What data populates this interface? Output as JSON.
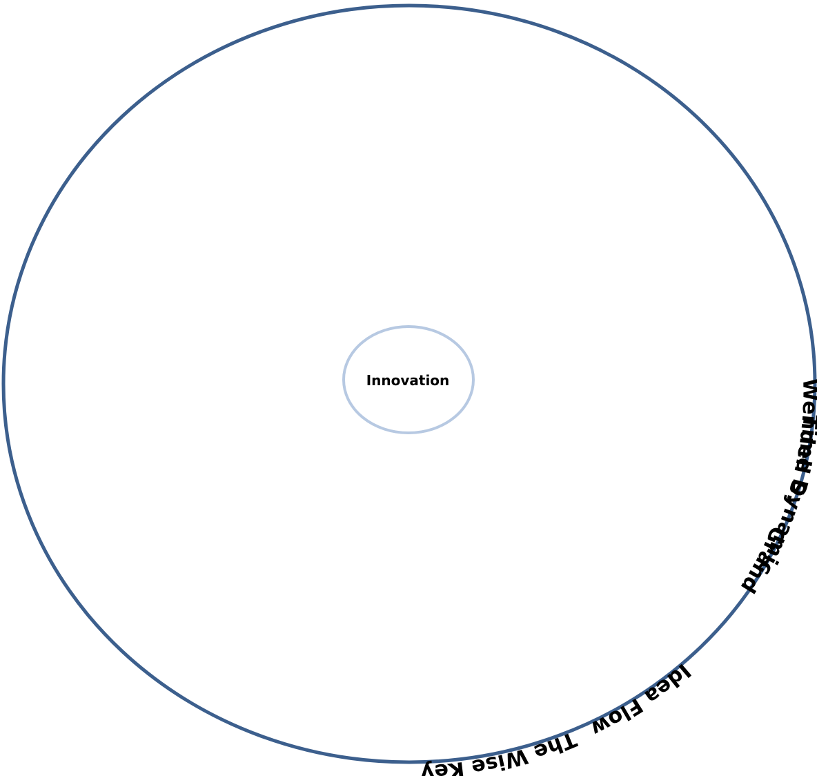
{
  "diagram": {
    "center_label": "Innovation",
    "colors": {
      "outer_ring": "#3c5f8d",
      "inner_ring": "#b7c9e2",
      "text": "#000000",
      "background": "#ffffff"
    },
    "ring_labels": [
      "Wendell S.",
      "Time Dynamic",
      "Grand",
      "Idea Flow",
      "The Wise Key"
    ]
  }
}
